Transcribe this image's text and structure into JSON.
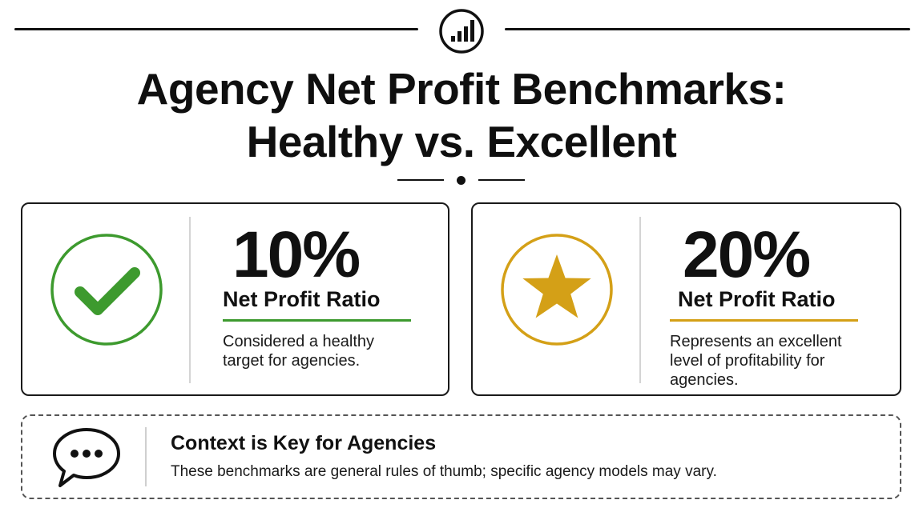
{
  "header": {
    "icon": "bar-chart-icon",
    "title_line1": "Agency Net Profit Benchmarks:",
    "title_line2": "Healthy vs. Excellent"
  },
  "benchmarks": [
    {
      "icon": "check-icon",
      "accent": "#3d9a2e",
      "value": "10%",
      "label": "Net Profit Ratio",
      "description": "Considered a healthy target for agencies."
    },
    {
      "icon": "star-icon",
      "accent": "#d4a017",
      "value": "20%",
      "label": "Net Profit Ratio",
      "description": "Represents an excellent level of profitability for agencies."
    }
  ],
  "context": {
    "icon": "speech-bubble-icon",
    "title": "Context is Key for Agencies",
    "text": "These benchmarks are general rules of thumb; specific agency models may vary."
  }
}
